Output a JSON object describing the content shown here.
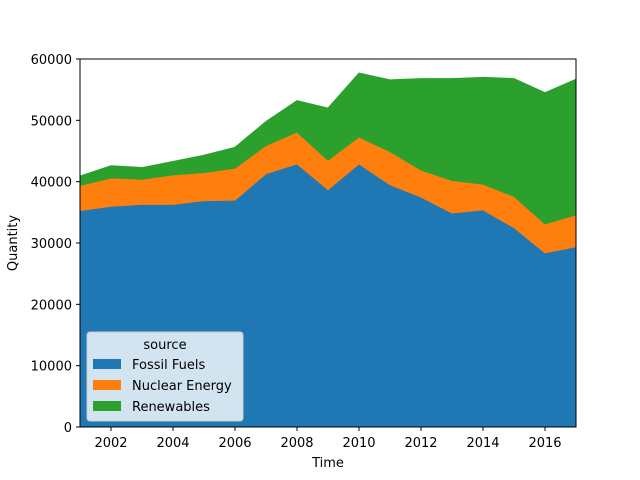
{
  "chart_data": {
    "type": "area",
    "stacked": true,
    "title": "",
    "xlabel": "Time",
    "ylabel": "Quantity",
    "xlim": [
      2001,
      2017
    ],
    "ylim": [
      0,
      60000
    ],
    "x": [
      2001,
      2002,
      2003,
      2004,
      2005,
      2006,
      2007,
      2008,
      2009,
      2010,
      2011,
      2012,
      2013,
      2014,
      2015,
      2016,
      2017
    ],
    "x_ticks": [
      2002,
      2004,
      2006,
      2008,
      2010,
      2012,
      2014,
      2016
    ],
    "y_ticks": [
      0,
      10000,
      20000,
      30000,
      40000,
      50000,
      60000
    ],
    "legend": {
      "title": "source",
      "placement": "lower-left"
    },
    "series": [
      {
        "name": "Fossil Fuels",
        "color": "#1f77b4",
        "values": [
          35300,
          36000,
          36300,
          36300,
          36900,
          37000,
          41300,
          42900,
          38700,
          42900,
          39500,
          37500,
          34900,
          35400,
          32500,
          28400,
          29400
        ]
      },
      {
        "name": "Nuclear Energy",
        "color": "#ff7f0e",
        "values": [
          4100,
          4600,
          4100,
          4800,
          4600,
          5200,
          4600,
          5200,
          4800,
          4400,
          5400,
          4400,
          5300,
          4200,
          5100,
          4700,
          5200
        ]
      },
      {
        "name": "Renewables",
        "color": "#2ca02c",
        "values": [
          1500,
          2000,
          1900,
          2200,
          2800,
          3400,
          3900,
          5100,
          8500,
          10400,
          11700,
          14900,
          16600,
          17400,
          19200,
          21400,
          22100
        ]
      }
    ]
  }
}
